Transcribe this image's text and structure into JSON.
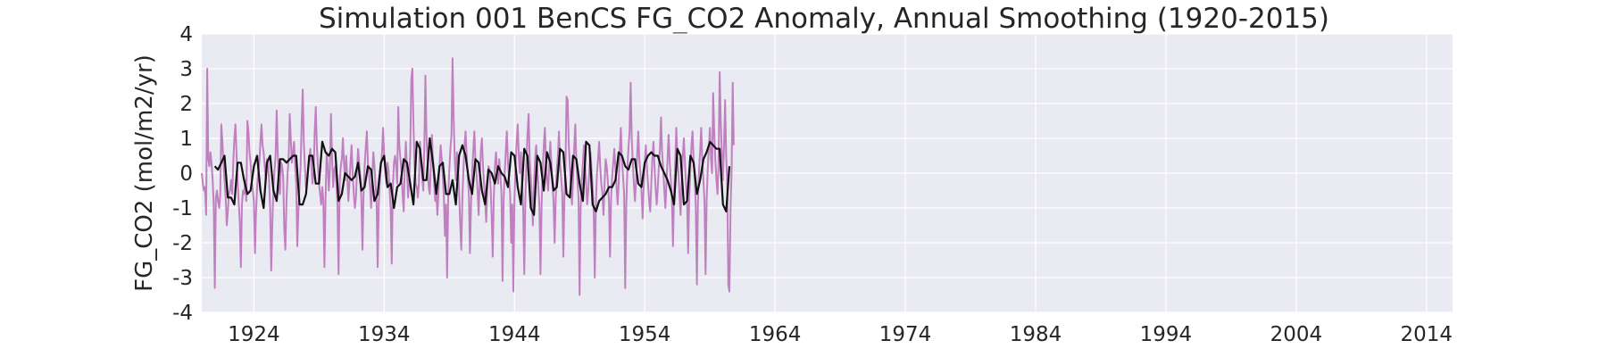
{
  "chart_data": {
    "type": "line",
    "title": "Simulation 001 BenCS FG_CO2 Anomaly, Annual Smoothing (1920-2015)",
    "xlabel": "",
    "ylabel": "FG_CO2 (mol/m2/yr)",
    "xlim": [
      1920,
      2016
    ],
    "ylim": [
      -4,
      4
    ],
    "x_ticks": [
      "1924",
      "1934",
      "1944",
      "1954",
      "1964",
      "1974",
      "1984",
      "1994",
      "2004",
      "2014"
    ],
    "y_ticks": [
      "4",
      "3",
      "2",
      "1",
      "0",
      "-1",
      "-2",
      "-3",
      "-4"
    ],
    "grid": true,
    "legend": "none",
    "colors": {
      "background": "#eaeaf2",
      "grid": "#ffffff",
      "raw": "#c080c0",
      "smoothed": "#111111"
    },
    "series": [
      {
        "role": "monthly",
        "x_start": 1920.0,
        "x_step": 0.0833333,
        "values": [
          0.0,
          -0.3,
          -0.5,
          -0.4,
          -1.2,
          3.0,
          0.4,
          0.2,
          0.6,
          0.3,
          -0.2,
          -0.9,
          -3.3,
          -0.7,
          -0.5,
          -0.8,
          -1.0,
          -0.6,
          1.4,
          0.9,
          0.3,
          -0.2,
          -0.7,
          -1.5,
          -1.1,
          -0.6,
          -0.5,
          -0.2,
          -0.6,
          0.3,
          1.0,
          1.4,
          0.6,
          -0.2,
          -0.8,
          -1.4,
          -2.7,
          -0.9,
          -0.5,
          -0.6,
          -0.2,
          -0.8,
          1.5,
          1.2,
          0.6,
          0.3,
          -0.2,
          -0.5,
          -0.8,
          -2.3,
          -1.1,
          -0.4,
          0.0,
          0.3,
          0.9,
          1.4,
          0.8,
          0.6,
          0.2,
          -0.2,
          0.4,
          0.3,
          -0.2,
          -1.0,
          -2.8,
          -1.5,
          -0.4,
          0.1,
          0.5,
          1.8,
          0.6,
          -0.4,
          -0.6,
          0.3,
          0.2,
          -0.1,
          -1.6,
          -2.2,
          -0.8,
          0.0,
          0.4,
          1.7,
          1.0,
          0.3,
          0.6,
          0.9,
          0.2,
          -0.3,
          -2.1,
          -1.1,
          -0.4,
          0.2,
          1.4,
          2.4,
          0.9,
          0.2,
          -0.4,
          -0.2,
          0.2,
          0.4,
          0.7,
          0.2,
          -0.3,
          0.0,
          1.2,
          1.9,
          0.8,
          0.2,
          -0.3,
          -0.6,
          -0.9,
          -0.4,
          -0.8,
          -2.7,
          -0.8,
          0.6,
          0.2,
          -0.5,
          0.1,
          1.7,
          0.5,
          -0.4,
          0.1,
          0.2,
          -0.3,
          -0.9,
          -2.9,
          -0.3,
          0.2,
          0.4,
          1.0,
          0.3,
          -0.2,
          0.5,
          -0.1,
          -0.8,
          -0.3,
          0.3,
          0.8,
          0.0,
          -0.6,
          -1.0,
          -0.7,
          0.1,
          0.7,
          0.3,
          -0.1,
          -0.8,
          -2.2,
          -0.6,
          0.2,
          0.7,
          1.2,
          0.3,
          0.0,
          -0.4,
          -1.0,
          -0.1,
          0.6,
          0.2,
          -0.3,
          -0.8,
          -2.7,
          -0.9,
          -0.3,
          0.2,
          0.6,
          1.3,
          0.5,
          0.0,
          -0.3,
          0.3,
          0.1,
          -0.5,
          -1.0,
          -2.6,
          -0.4,
          0.3,
          0.5,
          0.2,
          -0.3,
          1.9,
          0.8,
          0.4,
          0.0,
          -0.6,
          -1.1,
          0.2,
          0.9,
          0.1,
          -0.7,
          -0.2,
          0.6,
          2.7,
          3.0,
          1.4,
          0.2,
          -0.3,
          -0.4,
          -0.7,
          -0.3,
          0.9,
          0.4,
          -0.1,
          -0.5,
          0.8,
          2.8,
          1.1,
          0.3,
          -0.4,
          -0.6,
          0.2,
          1.1,
          0.3,
          -0.3,
          -0.8,
          -0.5,
          -1.2,
          -0.6,
          0.2,
          0.8,
          0.4,
          -0.1,
          -0.7,
          -1.8,
          -0.9,
          -3.0,
          -0.6,
          0.1,
          0.7,
          1.1,
          3.3,
          1.6,
          0.4,
          -0.2,
          0.6,
          0.2,
          -0.5,
          -1.4,
          -2.2,
          -0.7,
          0.1,
          0.8,
          1.2,
          0.5,
          -0.1,
          -0.6,
          -2.3,
          -0.9,
          0.0,
          0.6,
          1.2,
          0.4,
          0.0,
          -0.5,
          -1.2,
          -0.3,
          0.6,
          1.0,
          0.2,
          -0.3,
          -0.8,
          -1.4,
          -0.5,
          0.2,
          0.1,
          -0.4,
          -1.2,
          -2.4,
          -0.7,
          0.2,
          0.6,
          0.1,
          -0.3,
          0.4,
          0.0,
          -0.6,
          -3.1,
          -0.8,
          0.0,
          0.6,
          1.2,
          0.3,
          -0.2,
          -0.6,
          -2.0,
          -0.9,
          -3.4,
          -0.8,
          0.2,
          0.9,
          1.4,
          0.5,
          0.0,
          0.6,
          -0.3,
          -1.0,
          -2.9,
          -0.8,
          0.2,
          1.1,
          1.7,
          0.4,
          -0.1,
          -0.7,
          -1.5,
          -0.4,
          0.4,
          0.8,
          0.2,
          -0.4,
          -0.9,
          -2.9,
          -0.9,
          0.1,
          0.8,
          1.3,
          0.4,
          -0.2,
          -0.5,
          0.2,
          0.9,
          0.3,
          -0.3,
          -0.8,
          -2.0,
          -0.7,
          0.1,
          0.5,
          1.2,
          0.3,
          -0.1,
          -0.6,
          -2.4,
          -0.7,
          0.2,
          2.2,
          2.1,
          0.8,
          0.2,
          -0.4,
          -0.9,
          -0.2,
          0.7,
          1.4,
          0.3,
          -0.2,
          -0.7,
          -3.5,
          -1.0,
          -0.2,
          0.3,
          0.8,
          0.2,
          -0.3,
          -0.9,
          -0.5,
          0.1,
          0.6,
          0.1,
          -0.4,
          -1.1,
          -3.0,
          -0.8,
          0.0,
          0.4,
          0.9,
          0.2,
          -0.3,
          -0.6,
          -1.2,
          -0.3,
          0.4,
          0.2,
          -0.2,
          -0.8,
          -2.4,
          -0.7,
          -0.1,
          0.3,
          0.7,
          0.1,
          -0.4,
          -0.9,
          -0.3,
          0.6,
          1.3,
          0.4,
          -0.1,
          -0.6,
          -3.3,
          -0.9,
          0.1,
          0.7,
          1.2,
          2.6,
          1.0,
          0.3,
          -0.3,
          -0.8,
          -0.2,
          0.5,
          1.2,
          0.4,
          0.0,
          -0.5,
          -1.3,
          -0.4,
          0.3,
          0.8,
          0.2,
          -0.3,
          -0.8,
          -1.1,
          -0.3,
          0.4,
          0.9,
          0.2,
          -0.4,
          -0.9,
          -0.4,
          0.2,
          0.7,
          1.6,
          0.6,
          0.1,
          -0.5,
          -1.0,
          -0.3,
          0.4,
          1.1,
          0.3,
          -0.2,
          -0.7,
          -2.1,
          -0.6,
          0.2,
          1.3,
          0.5,
          0.0,
          -0.6,
          -1.2,
          -0.3,
          0.5,
          1.0,
          0.3,
          -0.3,
          -0.8,
          -2.3,
          -0.7,
          0.1,
          0.8,
          1.2,
          0.4,
          -0.2,
          -0.9,
          -3.2,
          -0.8,
          0.1,
          0.6,
          1.3,
          0.4,
          -0.2,
          -0.8,
          -2.9,
          -0.8,
          0.1,
          0.7,
          1.3,
          0.4,
          0.0,
          2.3,
          1.2,
          0.4,
          -0.2,
          -0.6,
          0.3,
          2.9,
          1.5,
          0.6,
          -0.2,
          0.8,
          2.1,
          0.5,
          -0.3,
          -3.2,
          -3.4,
          -1.0,
          0.1,
          2.6,
          0.8
        ]
      },
      {
        "role": "annual-smoothed",
        "x_start": 1921.0,
        "x_step": 0.25,
        "values": [
          0.2,
          0.1,
          0.3,
          0.5,
          -0.7,
          -0.7,
          -0.9,
          0.3,
          0.3,
          -0.2,
          -0.6,
          -0.5,
          0.2,
          0.5,
          -0.5,
          -1.0,
          0.3,
          0.5,
          -0.5,
          -0.8,
          0.4,
          0.4,
          0.3,
          0.4,
          0.5,
          0.5,
          -0.9,
          -0.9,
          -0.6,
          0.5,
          0.5,
          -0.3,
          -0.3,
          0.9,
          0.6,
          0.5,
          0.7,
          0.6,
          -0.8,
          -0.6,
          0.0,
          -0.1,
          -0.2,
          -0.1,
          0.3,
          -0.5,
          -0.4,
          0.2,
          0.1,
          -0.8,
          -0.6,
          0.3,
          0.5,
          -0.4,
          -0.3,
          -1.0,
          -0.4,
          -0.3,
          0.4,
          0.3,
          -0.3,
          -0.9,
          0.9,
          0.7,
          -0.2,
          -0.2,
          1.0,
          0.3,
          -0.6,
          0.2,
          0.3,
          -0.6,
          -0.6,
          -0.2,
          -0.9,
          0.5,
          0.8,
          0.5,
          -0.2,
          -0.6,
          0.4,
          0.3,
          -0.5,
          -0.9,
          0.1,
          0.0,
          -0.3,
          0.2,
          0.0,
          -0.1,
          -0.4,
          0.6,
          0.5,
          -0.4,
          -0.9,
          0.7,
          0.5,
          -1.0,
          -1.2,
          0.5,
          0.3,
          -0.5,
          0.6,
          0.3,
          -0.5,
          -0.4,
          0.7,
          0.6,
          -0.6,
          -0.7,
          0.5,
          0.4,
          -0.3,
          -0.8,
          0.9,
          0.8,
          -0.9,
          -1.1,
          -0.8,
          -0.7,
          -0.6,
          -0.4,
          -0.4,
          -0.2,
          0.6,
          0.5,
          0.2,
          0.1,
          0.4,
          0.4,
          -0.3,
          -0.4,
          0.3,
          0.5,
          0.6,
          0.5,
          0.5,
          0.2,
          0.0,
          -0.2,
          -0.5,
          -0.9,
          0.7,
          0.5,
          -0.9,
          -0.8,
          0.5,
          0.3,
          -0.6,
          -0.2,
          0.4,
          0.6,
          0.9,
          0.8,
          0.7,
          0.7,
          -0.9,
          -1.1,
          0.2
        ]
      }
    ]
  }
}
